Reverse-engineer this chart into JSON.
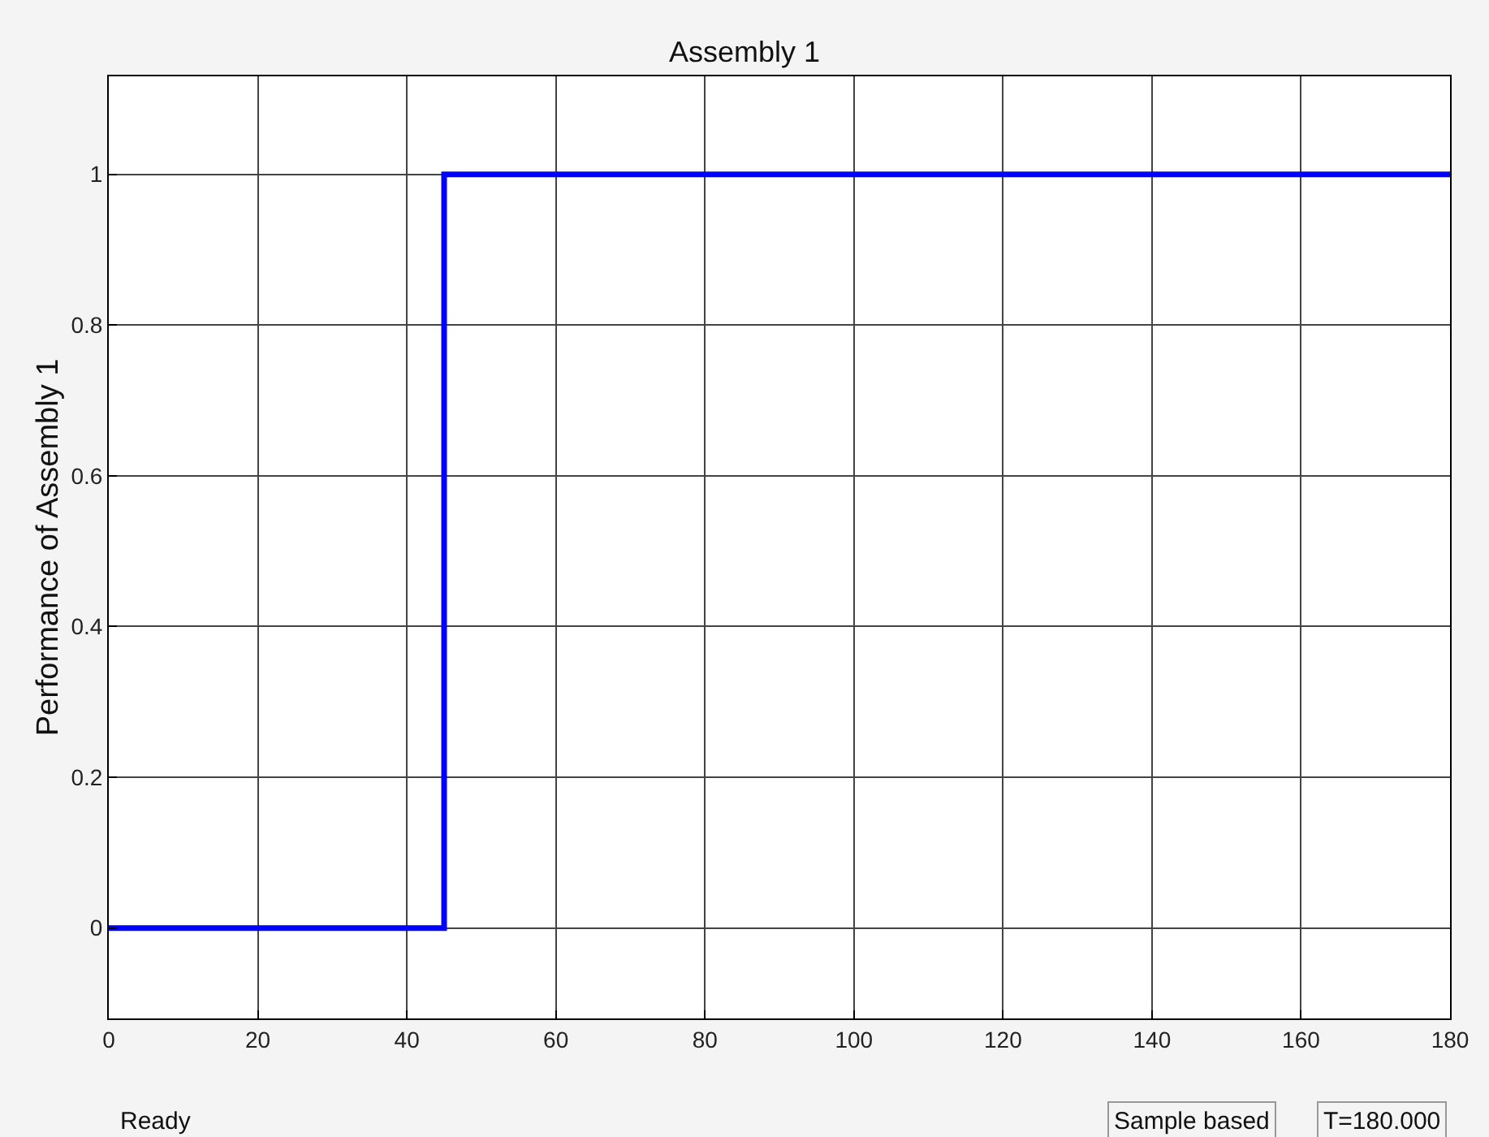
{
  "chart_data": {
    "type": "step",
    "title": "Assembly 1",
    "ylabel": "Performance of Assembly 1",
    "x": [
      0,
      45,
      180
    ],
    "series": [
      {
        "color": "#0000ff",
        "values": [
          0,
          1,
          1
        ]
      }
    ],
    "xlim": [
      0,
      180
    ],
    "xticks": [
      0,
      20,
      40,
      60,
      80,
      100,
      120,
      140,
      160,
      180
    ],
    "ylim": [
      -0.12,
      1.13
    ],
    "yticks": [
      0,
      0.2,
      0.4,
      0.6,
      0.8,
      1
    ],
    "grid": true,
    "marker": "none",
    "line_style": "solid",
    "annotations": [
      "Ready",
      "Sample based",
      "T=180.000"
    ]
  }
}
